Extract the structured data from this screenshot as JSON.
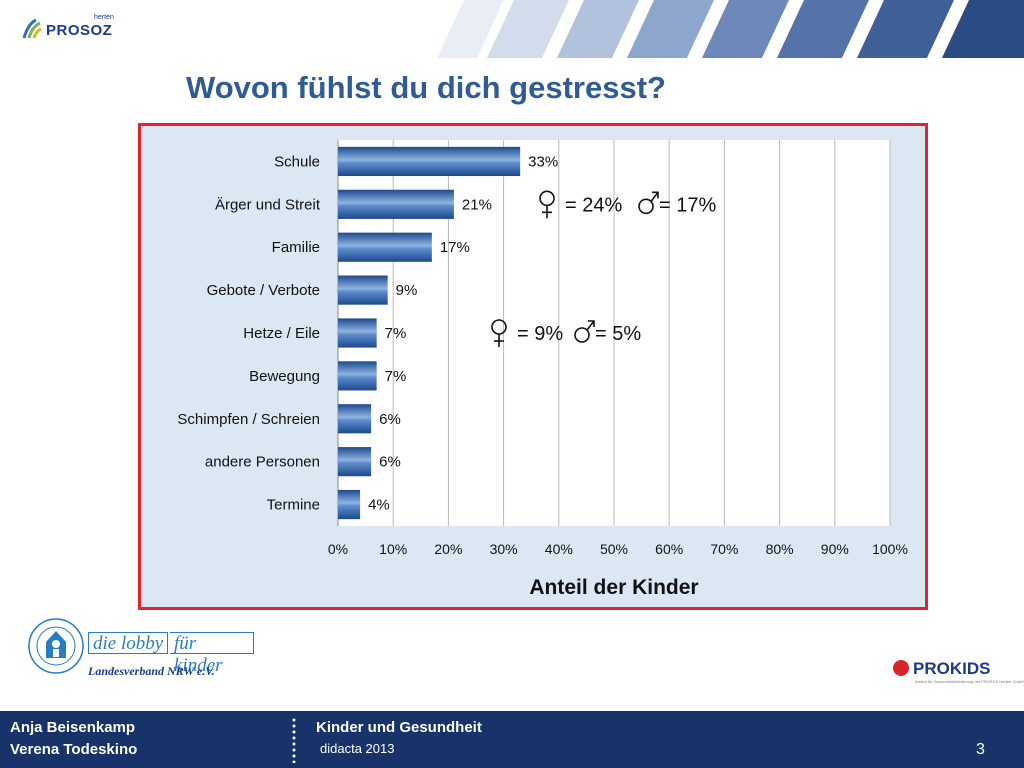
{
  "header": {
    "brand": "PROSOZ",
    "brand_sub": "herten"
  },
  "title": "Wovon fühlst du dich gestresst?",
  "chart_data": {
    "type": "bar",
    "orientation": "horizontal",
    "categories": [
      "Schule",
      "Ärger und Streit",
      "Familie",
      "Gebote / Verbote",
      "Hetze / Eile",
      "Bewegung",
      "Schimpfen / Schreien",
      "andere Personen",
      "Termine"
    ],
    "values": [
      33,
      21,
      17,
      9,
      7,
      7,
      6,
      6,
      4
    ],
    "value_labels": [
      "33%",
      "21%",
      "17%",
      "9%",
      "7%",
      "7%",
      "6%",
      "6%",
      "4%"
    ],
    "xlabel": "Anteil der Kinder",
    "xlim": [
      0,
      100
    ],
    "xticks": [
      "0%",
      "10%",
      "20%",
      "30%",
      "40%",
      "50%",
      "60%",
      "70%",
      "80%",
      "90%",
      "100%"
    ],
    "grid": "vertical",
    "bar_color": "#2a5a9e",
    "annotations": [
      {
        "text": "= 24%",
        "text2": "= 17%",
        "for": "Ärger und Streit"
      },
      {
        "text": "= 9%",
        "text2": "= 5%",
        "for": "Hetze / Eile"
      }
    ]
  },
  "logos": {
    "lobby_part1": "die lobby",
    "lobby_part2": "für kinder",
    "landesverband": "Landesverband NRW e.V.",
    "prokids": "PROKIDS",
    "prokids_tag": "Institut für Gesundheitsförderung der PROSOZ Herten GmbH"
  },
  "footer": {
    "author1": "Anja Beisenkamp",
    "author2": "Verena Todeskino",
    "topic": "Kinder und Gesundheit",
    "event": "didacta 2013",
    "page": "3"
  },
  "colors": {
    "accent": "#2f5b96",
    "frame": "#e12530",
    "footer": "#17336a"
  }
}
